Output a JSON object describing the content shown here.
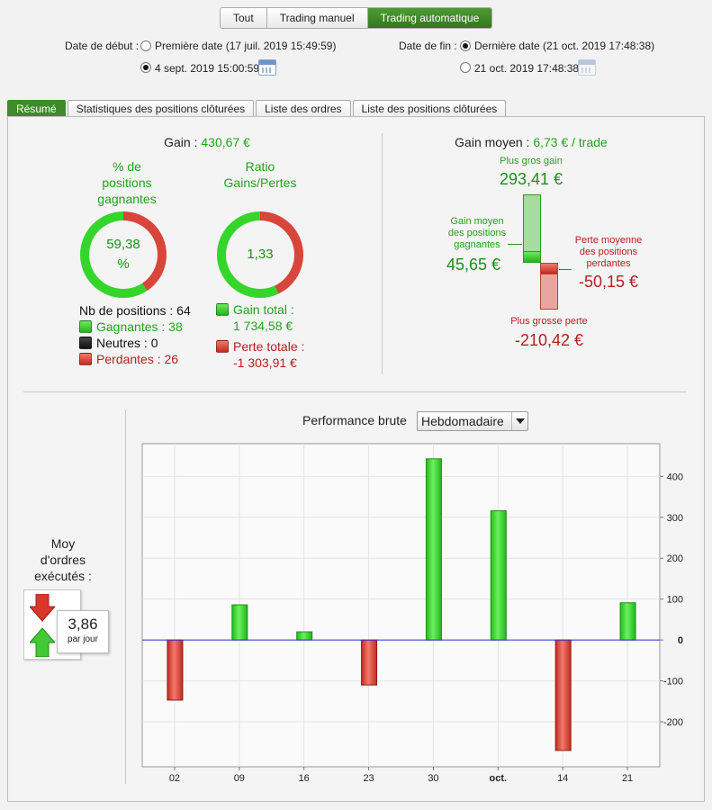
{
  "modes": [
    "Tout",
    "Trading manuel",
    "Trading automatique"
  ],
  "start": {
    "label": "Date de début :",
    "option1": "Première date (17 juil. 2019 15:49:59)",
    "option2": "4 sept. 2019 15:00:59",
    "selected": 2
  },
  "end": {
    "label": "Date de fin :",
    "option1": "Dernière date (21 oct. 2019 17:48:38)",
    "option2": "21 oct. 2019 17:48:38",
    "selected": 1
  },
  "tabs": [
    "Résumé",
    "Statistiques des positions clôturées",
    "Liste des ordres",
    "Liste des positions clôturées"
  ],
  "gain": {
    "label": "Gain",
    "value": "430,67 €"
  },
  "winrate": {
    "title_line1": "% de",
    "title_line2": "positions",
    "title_line3": "gagnantes",
    "value_line1": "59,38",
    "value_line2": "%",
    "fraction": 0.5938
  },
  "ratio": {
    "title_line1": "Ratio",
    "title_line2": "Gains/Pertes",
    "value": "1,33",
    "fraction": 0.5708
  },
  "positions": {
    "total_label": "Nb de positions : 64",
    "winners": "Gagnantes : 38",
    "neutral": "Neutres : 0",
    "losers": "Perdantes : 26"
  },
  "totals": {
    "gain_label": "Gain total :",
    "gain_value": "1 734,58 €",
    "loss_label": "Perte totale :",
    "loss_value": "-1 303,91 €"
  },
  "avg": {
    "label": "Gain moyen",
    "value": "6,73 € / trade",
    "best_label": "Plus gros gain",
    "best_value": "293,41 €",
    "avg_win_line1": "Gain moyen",
    "avg_win_line2": "des positions",
    "avg_win_line3": "gagnantes",
    "avg_win_value": "45,65 €",
    "avg_loss_line1": "Perte moyenne",
    "avg_loss_line2": "des positions",
    "avg_loss_line3": "perdantes",
    "avg_loss_value": "-50,15 €",
    "worst_label": "Plus grosse perte",
    "worst_value": "-210,42 €"
  },
  "orders": {
    "title_line1": "Moy",
    "title_line2": "d'ordres",
    "title_line3": "exécutés :",
    "value": "3,86",
    "unit": "par jour"
  },
  "performance": {
    "label": "Performance brute",
    "period": "Hebdomadaire"
  },
  "chart_data": {
    "type": "bar",
    "title": "Performance brute",
    "categories": [
      "02",
      "09",
      "16",
      "23",
      "30",
      "oct.",
      "14",
      "21"
    ],
    "values": [
      -147,
      86,
      20,
      -110,
      443,
      316,
      -270,
      91
    ],
    "ylim": [
      -310,
      480
    ],
    "yticks": [
      400,
      300,
      200,
      100,
      0,
      -100,
      -200
    ],
    "grid": true,
    "colors": {
      "positive": "#2fd126",
      "negative": "#d23a28",
      "zero_line": "#2b2bd6"
    }
  },
  "colors": {
    "accent_green": "#3f8a2a",
    "gain_green": "#22a31b",
    "loss_red": "#b62020"
  }
}
